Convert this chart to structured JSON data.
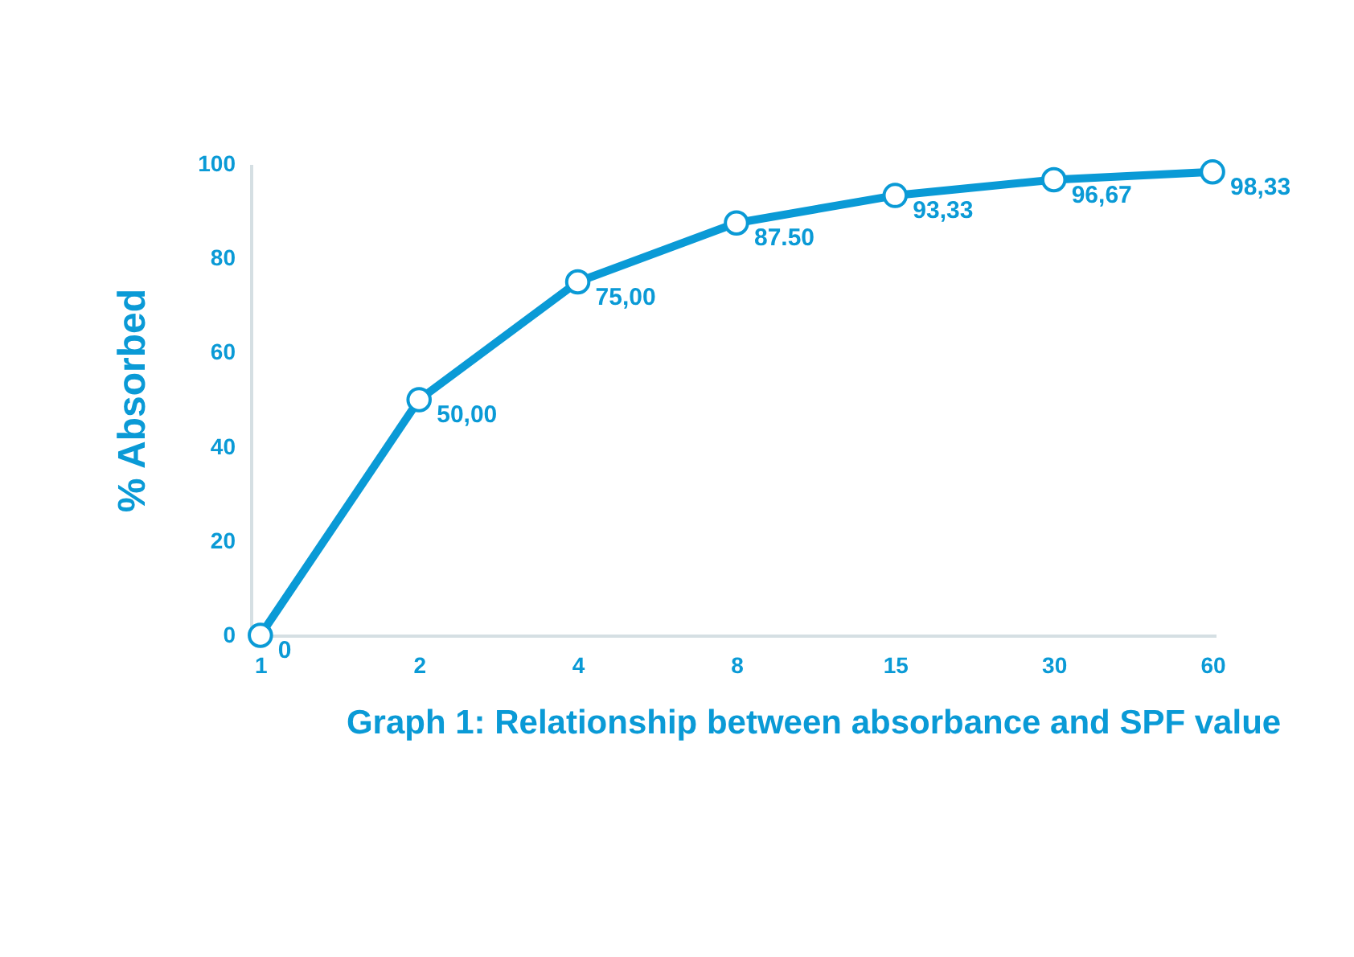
{
  "chart_data": {
    "type": "line",
    "title": "Graph 1: Relationship between absorbance and SPF value",
    "ylabel": "% Absorbed",
    "categories": [
      "1",
      "2",
      "4",
      "8",
      "15",
      "30",
      "60"
    ],
    "series": [
      {
        "color": "#0a9ad6",
        "values": [
          0,
          50,
          75,
          87.5,
          93.33,
          96.67,
          98.33
        ],
        "value_labels": [
          "0",
          "50,00",
          "75,00",
          "87.50",
          "93,33",
          "96,67",
          "98,33"
        ]
      }
    ],
    "ylim": [
      0,
      100
    ],
    "yticks": [
      0,
      20,
      40,
      60,
      80,
      100
    ],
    "grid": false,
    "legend": false,
    "marker": "circle",
    "line_style": "solid"
  }
}
